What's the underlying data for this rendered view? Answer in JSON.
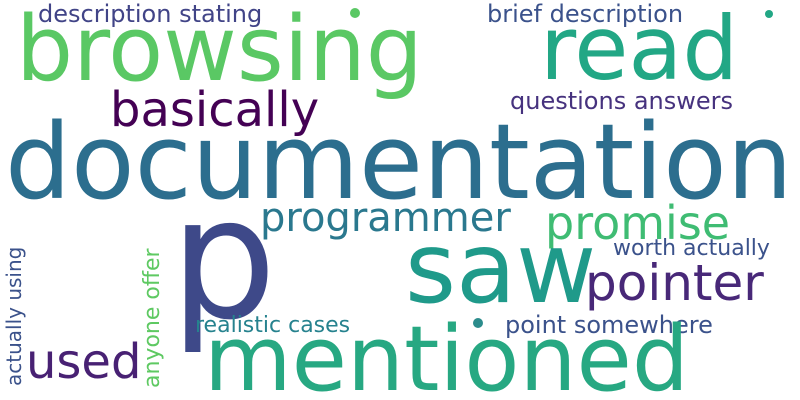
{
  "words": [
    {
      "key": "documentation",
      "text": "documentation",
      "color": "#2c6e8e"
    },
    {
      "key": "mentioned",
      "text": "mentioned",
      "color": "#27a882"
    },
    {
      "key": "browsing",
      "text": "browsing",
      "color": "#5ac864"
    },
    {
      "key": "saw",
      "text": "saw",
      "color": "#1f9a8a"
    },
    {
      "key": "read",
      "text": "read",
      "color": "#22a785"
    },
    {
      "key": "p",
      "text": "p",
      "color": "#3e4989"
    },
    {
      "key": "basically",
      "text": "basically",
      "color": "#440154"
    },
    {
      "key": "programmer",
      "text": "programmer",
      "color": "#2a788e"
    },
    {
      "key": "promise",
      "text": "promise",
      "color": "#3fbc73"
    },
    {
      "key": "pointer",
      "text": "pointer",
      "color": "#482878"
    },
    {
      "key": "used",
      "text": "used",
      "color": "#482173"
    },
    {
      "key": "description_stating",
      "text": "description stating",
      "color": "#414487"
    },
    {
      "key": "brief_description",
      "text": "brief description",
      "color": "#3b528b"
    },
    {
      "key": "questions_answers",
      "text": "questions answers",
      "color": "#46327e"
    },
    {
      "key": "worth_actually",
      "text": "worth actually",
      "color": "#3b528b"
    },
    {
      "key": "realistic_cases",
      "text": "realistic cases",
      "color": "#26828e"
    },
    {
      "key": "point_somewhere",
      "text": "point somewhere",
      "color": "#3b528b"
    },
    {
      "key": "anyone_offer",
      "text": "anyone offer",
      "color": "#5ec962"
    },
    {
      "key": "actually_using",
      "text": "actually using",
      "color": "#3b528b"
    }
  ],
  "dot_colors": [
    "#5ac864",
    "#2c8c8c",
    "#22a785"
  ]
}
